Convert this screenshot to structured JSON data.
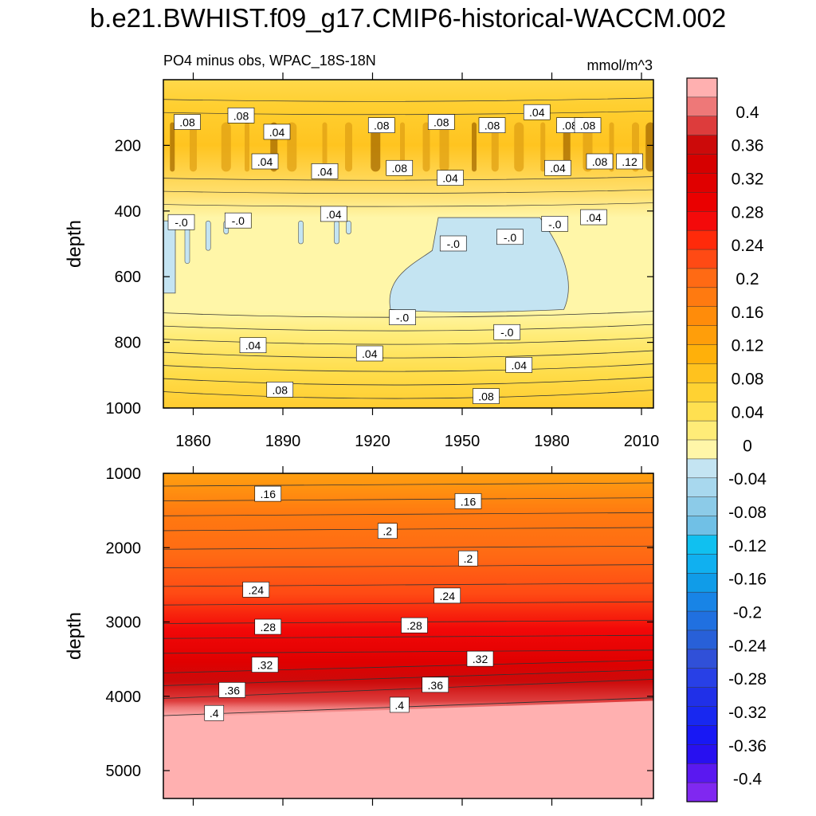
{
  "figure": {
    "title": "b.e21.BWHIST.f09_g17.CMIP6-historical-WACCM.002",
    "left_subtitle": "PO4 minus obs, WPAC_18S-18N",
    "right_subtitle": "mmol/m^3"
  },
  "chart_data": [
    {
      "type": "heatmap",
      "panel": "upper",
      "ylabel": "depth",
      "y_ticks": [
        "200",
        "400",
        "600",
        "800",
        "1000"
      ],
      "ylim": [
        0,
        1000
      ],
      "y_reversed": true,
      "xlim": [
        1850,
        2014
      ],
      "x_ticks": [
        "1860",
        "1890",
        "1920",
        "1950",
        "1980",
        "2010"
      ],
      "contour_labels": [
        {
          "text": ".08",
          "x": 1858,
          "y": 130
        },
        {
          "text": ".08",
          "x": 1876,
          "y": 110
        },
        {
          "text": ".04",
          "x": 1888,
          "y": 160
        },
        {
          "text": ".04",
          "x": 1904,
          "y": 280
        },
        {
          "text": ".08",
          "x": 1923,
          "y": 140
        },
        {
          "text": ".08",
          "x": 1943,
          "y": 130
        },
        {
          "text": ".08",
          "x": 1960,
          "y": 140
        },
        {
          "text": ".04",
          "x": 1975,
          "y": 100
        },
        {
          "text": ".08",
          "x": 1986,
          "y": 140
        },
        {
          "text": ".08",
          "x": 1992,
          "y": 140
        },
        {
          "text": ".04",
          "x": 1884,
          "y": 250
        },
        {
          "text": ".08",
          "x": 1929,
          "y": 270
        },
        {
          "text": ".04",
          "x": 1946,
          "y": 300
        },
        {
          "text": ".04",
          "x": 1982,
          "y": 270
        },
        {
          "text": ".08",
          "x": 1996,
          "y": 250
        },
        {
          "text": ".12",
          "x": 2006,
          "y": 250
        },
        {
          "text": "-.0",
          "x": 1856,
          "y": 435
        },
        {
          "text": "-.0",
          "x": 1875,
          "y": 430
        },
        {
          "text": ".04",
          "x": 1907,
          "y": 410
        },
        {
          "text": "-.0",
          "x": 1947,
          "y": 500
        },
        {
          "text": "-.0",
          "x": 1966,
          "y": 480
        },
        {
          "text": "-.0",
          "x": 1981,
          "y": 440
        },
        {
          "text": ".04",
          "x": 1994,
          "y": 420
        },
        {
          "text": "-.0",
          "x": 1930,
          "y": 725
        },
        {
          "text": "-.0",
          "x": 1965,
          "y": 770
        },
        {
          "text": ".04",
          "x": 1880,
          "y": 810
        },
        {
          "text": ".04",
          "x": 1919,
          "y": 835
        },
        {
          "text": ".04",
          "x": 1969,
          "y": 870
        },
        {
          "text": ".08",
          "x": 1889,
          "y": 945
        },
        {
          "text": ".08",
          "x": 1958,
          "y": 965
        }
      ]
    },
    {
      "type": "heatmap",
      "panel": "lower",
      "ylabel": "depth",
      "y_ticks": [
        "1000",
        "2000",
        "3000",
        "4000",
        "5000"
      ],
      "ylim": [
        1000,
        5375
      ],
      "y_reversed": true,
      "xlim": [
        1850,
        2014
      ],
      "contour_labels": [
        {
          "text": ".16",
          "x": 1885,
          "y": 1280
        },
        {
          "text": ".16",
          "x": 1952,
          "y": 1380
        },
        {
          "text": ".2",
          "x": 1925,
          "y": 1780
        },
        {
          "text": ".2",
          "x": 1952,
          "y": 2150
        },
        {
          "text": ".24",
          "x": 1881,
          "y": 2570
        },
        {
          "text": ".24",
          "x": 1945,
          "y": 2650
        },
        {
          "text": ".28",
          "x": 1885,
          "y": 3070
        },
        {
          "text": ".28",
          "x": 1934,
          "y": 3050
        },
        {
          "text": ".32",
          "x": 1884,
          "y": 3580
        },
        {
          "text": ".32",
          "x": 1956,
          "y": 3500
        },
        {
          "text": ".36",
          "x": 1873,
          "y": 3920
        },
        {
          "text": ".36",
          "x": 1941,
          "y": 3850
        },
        {
          "text": ".4",
          "x": 1867,
          "y": 4230
        },
        {
          "text": ".4",
          "x": 1929,
          "y": 4120
        }
      ]
    }
  ],
  "colorbar": {
    "labels": [
      "0.4",
      "0.36",
      "0.32",
      "0.28",
      "0.24",
      "0.2",
      "0.16",
      "0.12",
      "0.08",
      "0.04",
      "0",
      "-0.04",
      "-0.08",
      "-0.12",
      "-0.16",
      "-0.2",
      "-0.24",
      "-0.28",
      "-0.32",
      "-0.36",
      "-0.4"
    ],
    "colors": [
      "#ffb0b0",
      "#ee7878",
      "#dd3c3c",
      "#cc0a0a",
      "#d60000",
      "#e00000",
      "#ea0000",
      "#f40a0a",
      "#ff2a0a",
      "#ff4a14",
      "#ff6a14",
      "#ff7a10",
      "#ff8c0a",
      "#ff9e0a",
      "#ffb00a",
      "#ffc21e",
      "#ffd232",
      "#ffe050",
      "#ffec78",
      "#fff6a8",
      "#c4e4f2",
      "#a8d8ee",
      "#8ccbe8",
      "#70c0e6",
      "#10c0f0",
      "#10b0f0",
      "#109ce8",
      "#1884e6",
      "#2070e0",
      "#2860d8",
      "#3050d8",
      "#2840e6",
      "#2030e8",
      "#1828f0",
      "#1818f4",
      "#2810f0",
      "#5a18f0",
      "#8028f0"
    ]
  }
}
